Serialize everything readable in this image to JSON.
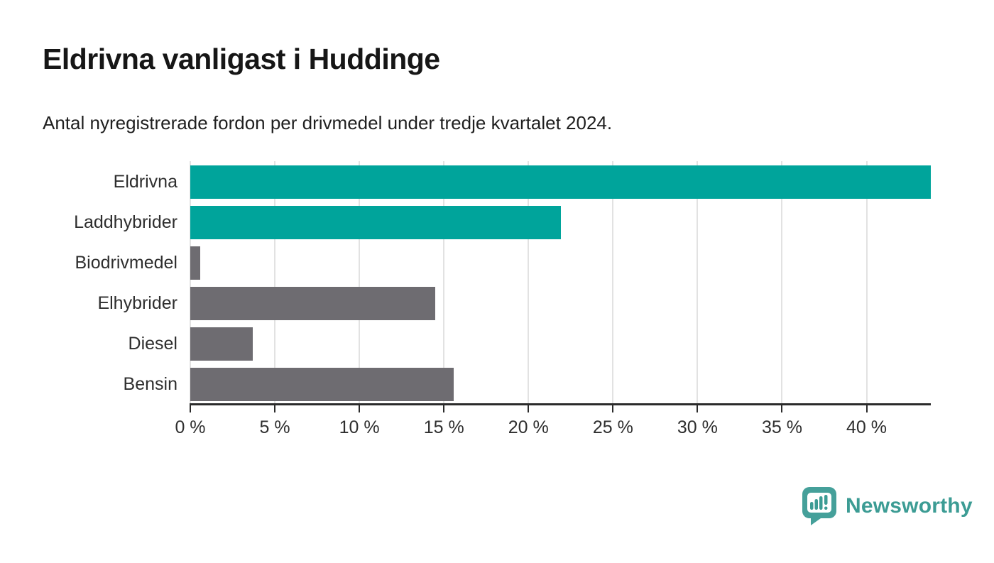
{
  "header": {
    "title": "Eldrivna vanligast i Huddinge",
    "subtitle": "Antal nyregistrerade fordon per drivmedel under tredje kvartalet 2024."
  },
  "chart_data": {
    "type": "bar",
    "orientation": "horizontal",
    "title": "Eldrivna vanligast i Huddinge",
    "subtitle": "Antal nyregistrerade fordon per drivmedel under tredje kvartalet 2024.",
    "categories": [
      "Eldrivna",
      "Laddhybrider",
      "Biodrivmedel",
      "Elhybrider",
      "Diesel",
      "Bensin"
    ],
    "values": [
      43.8,
      21.9,
      0.6,
      14.5,
      3.7,
      15.6
    ],
    "unit": "%",
    "xlabel": "",
    "ylabel": "",
    "xlim": [
      0,
      43.8
    ],
    "x_ticks": [
      0,
      5,
      10,
      15,
      20,
      25,
      30,
      35,
      40
    ],
    "x_tick_labels": [
      "0 %",
      "5 %",
      "10 %",
      "15 %",
      "20 %",
      "25 %",
      "30 %",
      "35 %",
      "40 %"
    ],
    "grid": true,
    "legend": false,
    "bar_colors": [
      "#00a49b",
      "#00a49b",
      "#6e6c71",
      "#6e6c71",
      "#6e6c71",
      "#6e6c71"
    ],
    "highlight_color": "#00a49b",
    "default_color": "#6e6c71",
    "gridline_color": "#e2e2e2",
    "axis_color": "#2b2b2b"
  },
  "footer": {
    "brand": "Newsworthy",
    "brand_color": "#3c9c94"
  }
}
